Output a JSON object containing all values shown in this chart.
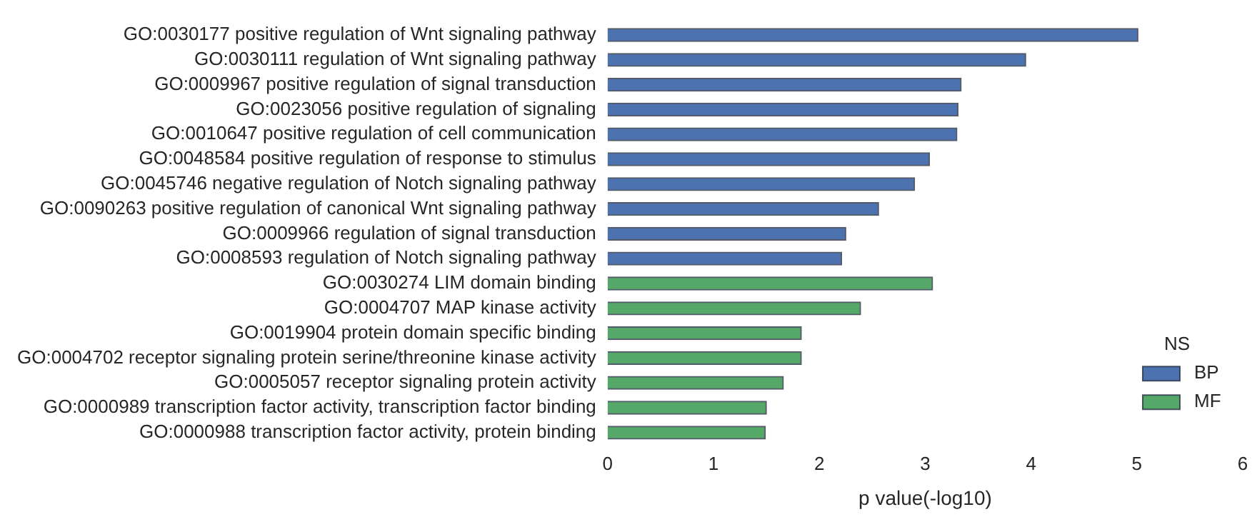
{
  "chart_data": {
    "type": "bar",
    "orientation": "horizontal",
    "xlabel": "p value(-log10)",
    "legend_title": "NS",
    "legend": "bottom right",
    "categories": [
      "GO:0030177 positive regulation of Wnt signaling pathway",
      "GO:0030111 regulation of Wnt signaling pathway",
      "GO:0009967 positive regulation of signal transduction",
      "GO:0023056 positive regulation of signaling",
      "GO:0010647 positive regulation of cell communication",
      "GO:0048584 positive regulation of response to stimulus",
      "GO:0045746 negative regulation of Notch signaling pathway",
      "GO:0090263 positive regulation of canonical Wnt signaling pathway",
      "GO:0009966 regulation of signal transduction",
      "GO:0008593 regulation of Notch signaling pathway",
      "GO:0030274 LIM domain binding",
      "GO:0004707 MAP kinase activity",
      "GO:0019904 protein domain specific binding",
      "GO:0004702 receptor signaling protein serine/threonine kinase activity",
      "GO:0005057 receptor signaling protein activity",
      "GO:0000989 transcription factor activity, transcription factor binding",
      "GO:0000988 transcription factor activity, protein binding"
    ],
    "series": [
      {
        "name": "BP",
        "color": "#4c72b0",
        "values": [
          5.01,
          3.95,
          3.34,
          3.31,
          3.3,
          3.04,
          2.9,
          2.56,
          2.25,
          2.21,
          null,
          null,
          null,
          null,
          null,
          null,
          null
        ]
      },
      {
        "name": "MF",
        "color": "#55a868",
        "values": [
          null,
          null,
          null,
          null,
          null,
          null,
          null,
          null,
          null,
          null,
          3.07,
          2.39,
          1.83,
          1.83,
          1.66,
          1.5,
          1.49
        ]
      }
    ],
    "xlim": [
      0,
      6
    ],
    "xticks": [
      0,
      1,
      2,
      3,
      4,
      5,
      6
    ],
    "grid": false
  }
}
